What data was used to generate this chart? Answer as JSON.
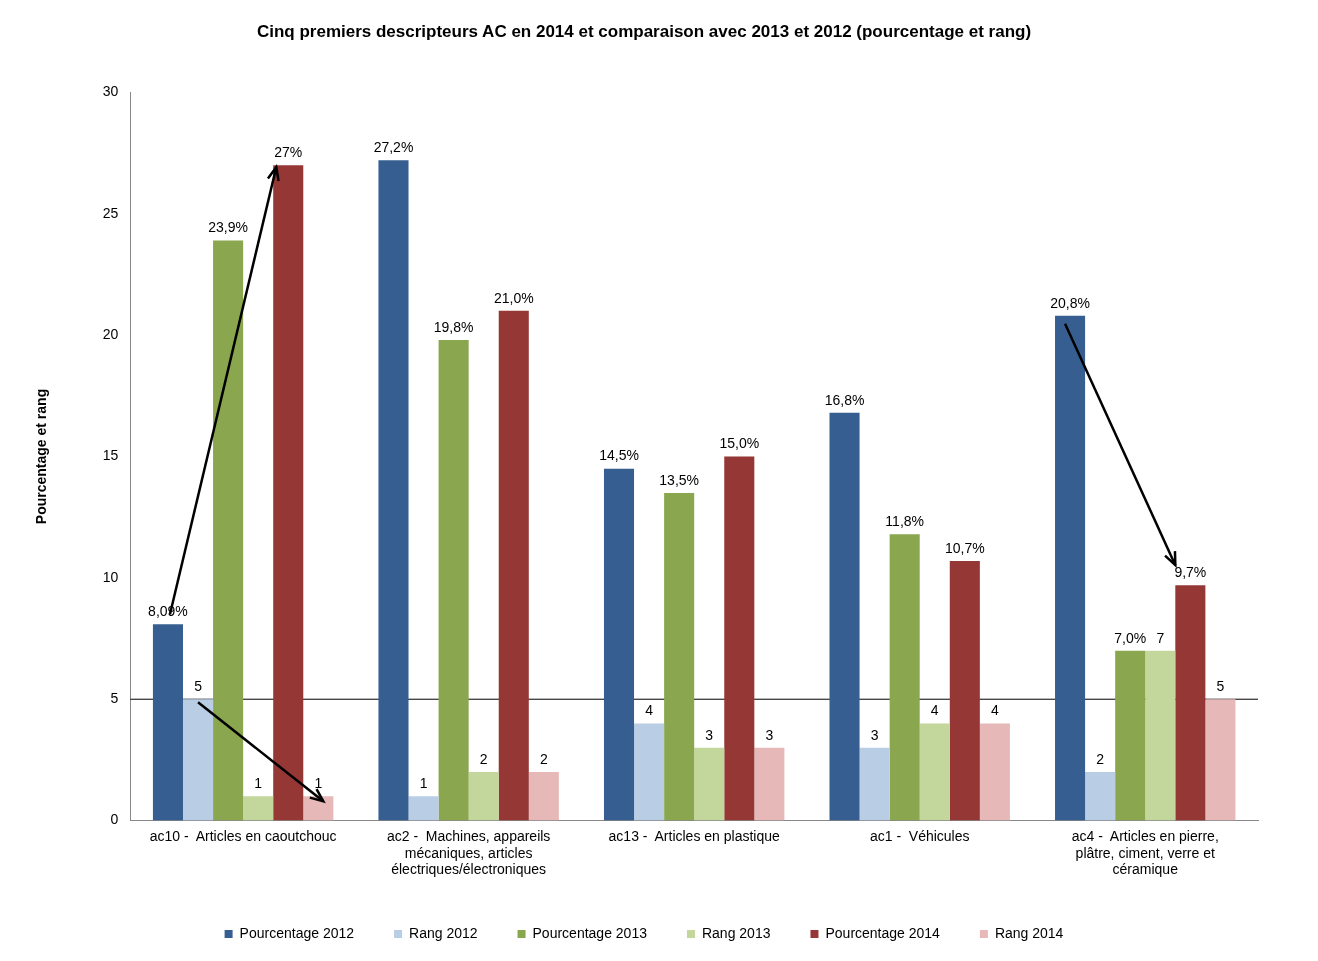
{
  "chart_data": {
    "type": "bar",
    "title": "Cinq premiers descripteurs AC en 2014 et comparaison avec 2013 et 2012 (pourcentage et rang)",
    "ylabel": "Pourcentage et rang",
    "categories": [
      "ac10 -  Articles en caoutchouc",
      "ac2 -  Machines, appareils mécaniques, articles électriques/électroniques",
      "ac13 -  Articles en plastique",
      "ac1 -  Véhicules",
      "ac4 -  Articles en pierre, plâtre, ciment, verre et céramique"
    ],
    "series": [
      {
        "name": "Pourcentage 2012",
        "color": "#375e91",
        "values": [
          8.09,
          27.2,
          14.5,
          16.8,
          20.8
        ],
        "value_labels": [
          "8,09%",
          "27,2%",
          "14,5%",
          "16,8%",
          "20,8%"
        ]
      },
      {
        "name": "Rang 2012",
        "color": "#b9cde5",
        "values": [
          5,
          1,
          4,
          3,
          2
        ],
        "value_labels": [
          "5",
          "1",
          "4",
          "3",
          "2"
        ]
      },
      {
        "name": "Pourcentage 2013",
        "color": "#8aa64e",
        "values": [
          23.9,
          19.8,
          13.5,
          11.8,
          7.0
        ],
        "value_labels": [
          "23,9%",
          "19,8%",
          "13,5%",
          "11,8%",
          "7,0%"
        ]
      },
      {
        "name": "Rang 2013",
        "color": "#c3d69b",
        "values": [
          1,
          2,
          3,
          4,
          7
        ],
        "value_labels": [
          "1",
          "2",
          "3",
          "4",
          "7"
        ]
      },
      {
        "name": "Pourcentage 2014",
        "color": "#953735",
        "values": [
          27,
          21.0,
          15.0,
          10.7,
          9.7
        ],
        "value_labels": [
          "27%",
          "21,0%",
          "15,0%",
          "10,7%",
          "9,7%"
        ]
      },
      {
        "name": "Rang 2014",
        "color": "#e6b9b8",
        "values": [
          1,
          2,
          3,
          4,
          5
        ],
        "value_labels": [
          "1",
          "2",
          "3",
          "4",
          "5"
        ]
      }
    ],
    "ylim": [
      0,
      30
    ],
    "yticks": [
      0,
      5,
      10,
      15,
      20,
      25,
      30
    ],
    "grid": false,
    "legend": "bottom",
    "ref_lines": [
      {
        "axis": "y",
        "value": 5,
        "color": "#000000"
      }
    ]
  }
}
